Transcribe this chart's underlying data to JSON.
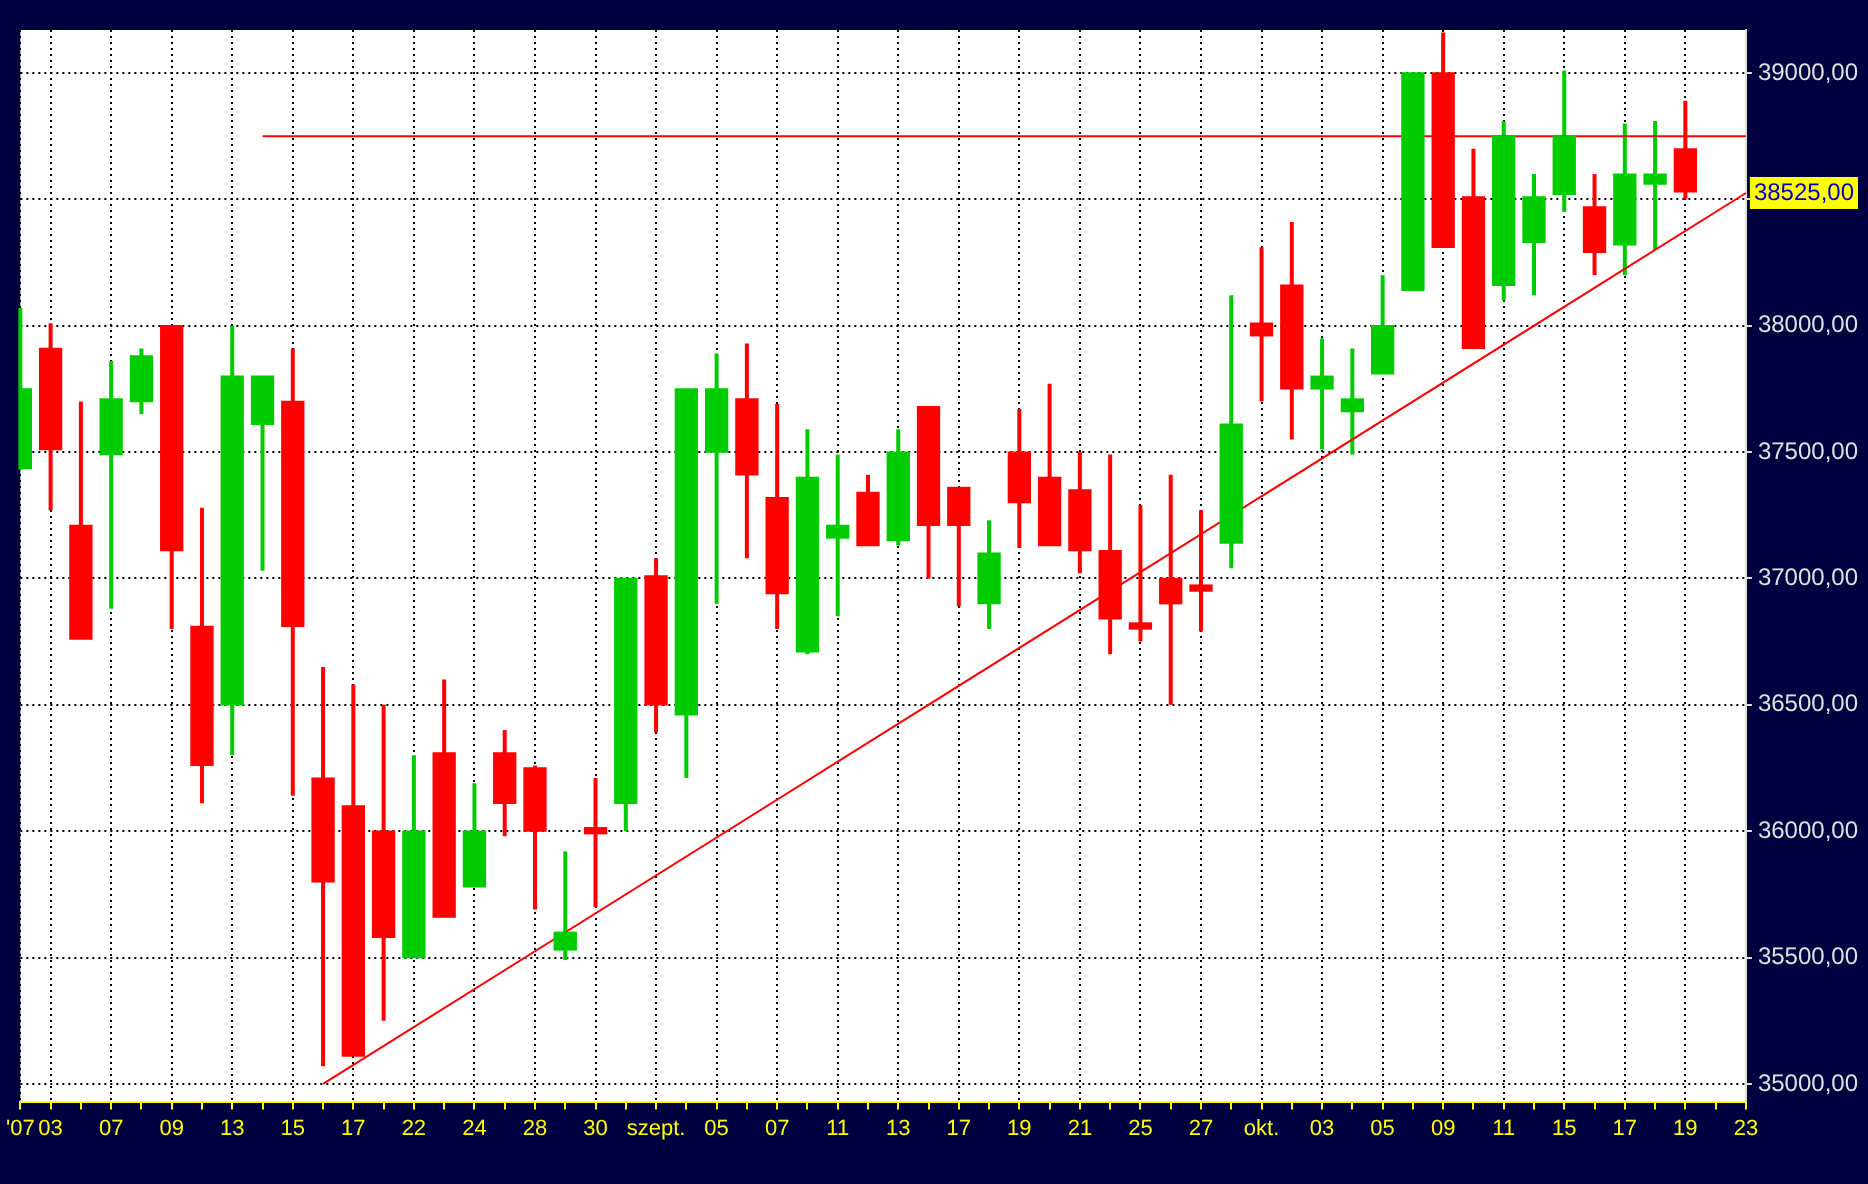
{
  "chart_data": {
    "type": "candlestick",
    "categories": [
      "'07",
      "03",
      null,
      "07",
      null,
      "09",
      null,
      "13",
      null,
      "15",
      null,
      "17",
      null,
      "22",
      null,
      "24",
      null,
      "28",
      null,
      "30",
      null,
      "szept.",
      null,
      "05",
      null,
      "07",
      null,
      "11",
      null,
      "13",
      null,
      "17",
      null,
      "19",
      null,
      "21",
      null,
      "25",
      null,
      "27",
      null,
      "okt.",
      null,
      "03",
      null,
      "05",
      null,
      "09",
      null,
      "11",
      null,
      "15",
      null,
      "17",
      null,
      "19",
      null,
      "23"
    ],
    "ohlc": [
      [
        37435,
        38070,
        37430,
        37750
      ],
      [
        37910,
        38010,
        37270,
        37510
      ],
      [
        37210,
        37700,
        36760,
        36760
      ],
      [
        37490,
        37860,
        36880,
        37710
      ],
      [
        37700,
        37910,
        37650,
        37880
      ],
      [
        38000,
        38000,
        36800,
        37110
      ],
      [
        36810,
        37280,
        36110,
        36260
      ],
      [
        36500,
        38000,
        36300,
        37800
      ],
      [
        37610,
        37800,
        37030,
        37800
      ],
      [
        37700,
        37910,
        36140,
        36810
      ],
      [
        36210,
        36650,
        35070,
        35800
      ],
      [
        36100,
        36580,
        35110,
        35110
      ],
      [
        36000,
        36500,
        35250,
        35580
      ],
      [
        35500,
        36300,
        35500,
        36000
      ],
      [
        36310,
        36600,
        35660,
        35660
      ],
      [
        35780,
        36190,
        35780,
        36000
      ],
      [
        36310,
        36400,
        35980,
        36110
      ],
      [
        36250,
        36260,
        35690,
        36000
      ],
      [
        35530,
        35920,
        35490,
        35600
      ],
      [
        36010,
        36210,
        35700,
        35990
      ],
      [
        36110,
        37000,
        36000,
        37000
      ],
      [
        37010,
        37080,
        36390,
        36500
      ],
      [
        36460,
        37750,
        36210,
        37750
      ],
      [
        37500,
        37890,
        36900,
        37750
      ],
      [
        37710,
        37930,
        37080,
        37410
      ],
      [
        37320,
        37690,
        36800,
        36940
      ],
      [
        36710,
        37590,
        36700,
        37400
      ],
      [
        37160,
        37490,
        36850,
        37210
      ],
      [
        37340,
        37410,
        37130,
        37130
      ],
      [
        37150,
        37590,
        37130,
        37500
      ],
      [
        37680,
        37680,
        37000,
        37210
      ],
      [
        37360,
        37360,
        36890,
        37210
      ],
      [
        36900,
        37230,
        36800,
        37100
      ],
      [
        37500,
        37670,
        37120,
        37300
      ],
      [
        37400,
        37770,
        37130,
        37130
      ],
      [
        37350,
        37500,
        37020,
        37110
      ],
      [
        37110,
        37490,
        36700,
        36840
      ],
      [
        36810,
        37290,
        36750,
        36800
      ],
      [
        37000,
        37410,
        36500,
        36900
      ],
      [
        36960,
        37270,
        36790,
        36950
      ],
      [
        37140,
        38120,
        37040,
        37610
      ],
      [
        38010,
        38310,
        37700,
        37960
      ],
      [
        38160,
        38410,
        37550,
        37750
      ],
      [
        37750,
        37950,
        37510,
        37800
      ],
      [
        37660,
        37910,
        37490,
        37710
      ],
      [
        37810,
        38200,
        37810,
        38000
      ],
      [
        38140,
        39000,
        38140,
        39000
      ],
      [
        39000,
        39160,
        38310,
        38310
      ],
      [
        38510,
        38700,
        37910,
        37910
      ],
      [
        38160,
        38810,
        38100,
        38750
      ],
      [
        38330,
        38600,
        38120,
        38510
      ],
      [
        38520,
        39010,
        38450,
        38750
      ],
      [
        38470,
        38600,
        38200,
        38290
      ],
      [
        38320,
        38800,
        38200,
        38600
      ],
      [
        38560,
        38810,
        38300,
        38600
      ],
      [
        38700,
        38890,
        38500,
        38530
      ],
      null,
      null
    ],
    "colors": [
      "#00cc00",
      "#ff0000",
      "#ff0000",
      "#00cc00",
      "#00cc00",
      "#ff0000",
      "#ff0000",
      "#00cc00",
      "#00cc00",
      "#ff0000",
      "#ff0000",
      "#ff0000",
      "#ff0000",
      "#00cc00",
      "#ff0000",
      "#00cc00",
      "#ff0000",
      "#ff0000",
      "#00cc00",
      "#ff0000",
      "#00cc00",
      "#ff0000",
      "#00cc00",
      "#00cc00",
      "#ff0000",
      "#ff0000",
      "#00cc00",
      "#00cc00",
      "#ff0000",
      "#00cc00",
      "#ff0000",
      "#ff0000",
      "#00cc00",
      "#ff0000",
      "#ff0000",
      "#ff0000",
      "#ff0000",
      "#ff0000",
      "#ff0000",
      "#ff0000",
      "#00cc00",
      "#ff0000",
      "#ff0000",
      "#00cc00",
      "#00cc00",
      "#00cc00",
      "#00cc00",
      "#ff0000",
      "#ff0000",
      "#00cc00",
      "#00cc00",
      "#00cc00",
      "#ff0000",
      "#00cc00",
      "#00cc00",
      "#ff0000",
      null,
      null
    ],
    "series": [
      {
        "type": "line",
        "color": "#ff0000",
        "values": [
          null,
          null,
          null,
          null,
          null,
          null,
          null,
          null,
          null,
          null,
          35000,
          null,
          null,
          null,
          null,
          null,
          null,
          null,
          null,
          null,
          null,
          null,
          null,
          null,
          null,
          null,
          null,
          null,
          null,
          null,
          null,
          null,
          null,
          null,
          null,
          null,
          null,
          null,
          null,
          null,
          null,
          null,
          null,
          null,
          null,
          null,
          null,
          null,
          null,
          null,
          null,
          null,
          null,
          null,
          null,
          null,
          null,
          38525
        ]
      },
      {
        "type": "line",
        "color": "#ff0000",
        "values": [
          null,
          null,
          null,
          null,
          null,
          null,
          null,
          null,
          38750,
          null,
          null,
          null,
          null,
          null,
          null,
          null,
          null,
          null,
          null,
          null,
          null,
          null,
          null,
          null,
          null,
          null,
          null,
          null,
          null,
          null,
          null,
          null,
          null,
          null,
          null,
          null,
          null,
          null,
          null,
          null,
          null,
          null,
          null,
          null,
          null,
          null,
          null,
          null,
          null,
          null,
          null,
          null,
          null,
          null,
          null,
          null,
          null,
          38750
        ]
      }
    ],
    "ylim": [
      34930,
      39170
    ],
    "yticks": [
      {
        "value": 35000,
        "label": "35000,00"
      },
      {
        "value": 35500,
        "label": "35500,00"
      },
      {
        "value": 36000,
        "label": "36000,00"
      },
      {
        "value": 36500,
        "label": "36500,00"
      },
      {
        "value": 37000,
        "label": "37000,00"
      },
      {
        "value": 37500,
        "label": "37500,00"
      },
      {
        "value": 38000,
        "label": "38000,00"
      },
      {
        "value": 38500,
        "label": null
      },
      {
        "value": 39000,
        "label": "39000,00"
      }
    ],
    "annotations": [
      "38525,00"
    ],
    "grid": true
  }
}
